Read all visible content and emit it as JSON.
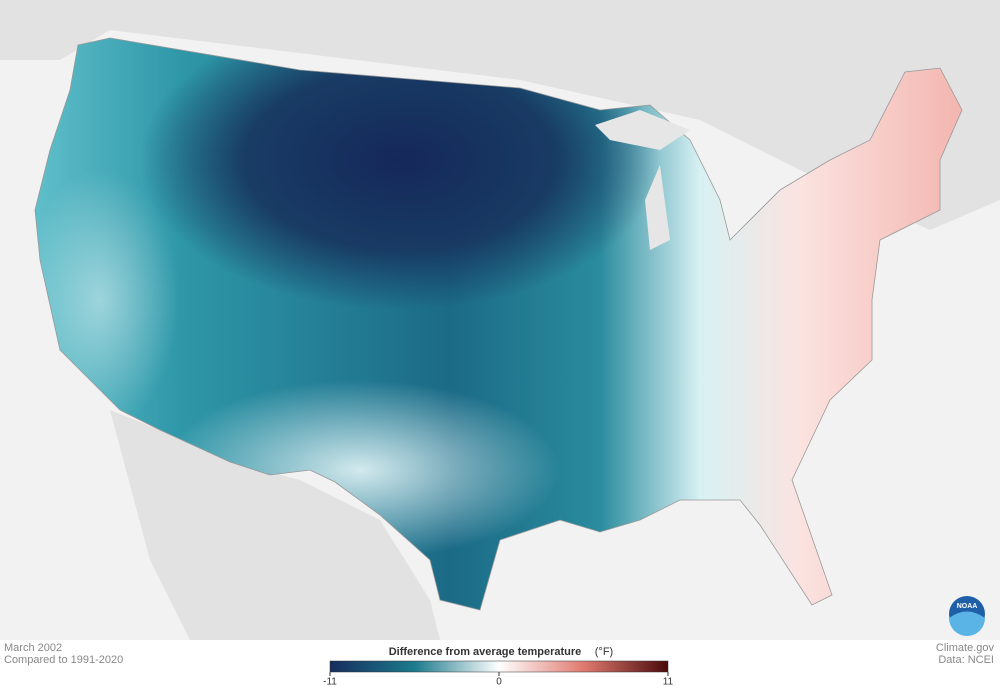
{
  "footer": {
    "date": "March 2002",
    "baseline": "Compared to 1991-2020",
    "site": "Climate.gov",
    "source": "Data: NCEI"
  },
  "logo": {
    "label": "NOAA"
  },
  "legend": {
    "title": "Difference from average temperature",
    "unit": "(°F)",
    "range": [
      -11,
      11
    ],
    "ticks": [
      -11,
      0,
      11
    ],
    "colors": [
      "#172d5e",
      "#1c7a8c",
      "#ffffff",
      "#e07a70",
      "#4a0b0b"
    ]
  }
}
